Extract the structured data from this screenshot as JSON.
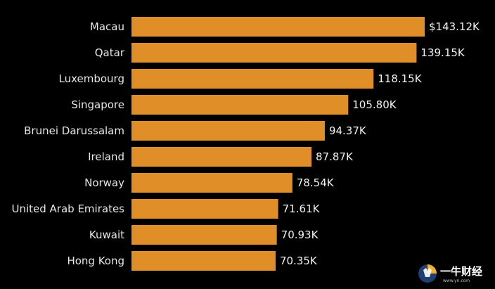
{
  "chart_data": {
    "type": "bar",
    "orientation": "horizontal",
    "categories": [
      "Macau",
      "Qatar",
      "Luxembourg",
      "Singapore",
      "Brunei Darussalam",
      "Ireland",
      "Norway",
      "United Arab Emirates",
      "Kuwait",
      "Hong Kong"
    ],
    "values": [
      143.12,
      139.15,
      118.15,
      105.8,
      94.37,
      87.87,
      78.54,
      71.61,
      70.93,
      70.35
    ],
    "value_labels": [
      "$143.12K",
      "139.15K",
      "118.15K",
      "105.80K",
      "94.37K",
      "87.87K",
      "78.54K",
      "71.61K",
      "70.93K",
      "70.35K"
    ],
    "xlim": [
      0,
      143.12
    ],
    "grid": false,
    "legend": "none",
    "colors": {
      "bar": "#e08e28",
      "background": "#000000",
      "text": "#e6e6e6"
    }
  },
  "watermark": {
    "chinese_text": "一牛财经",
    "url_text": "www.yn.com"
  }
}
